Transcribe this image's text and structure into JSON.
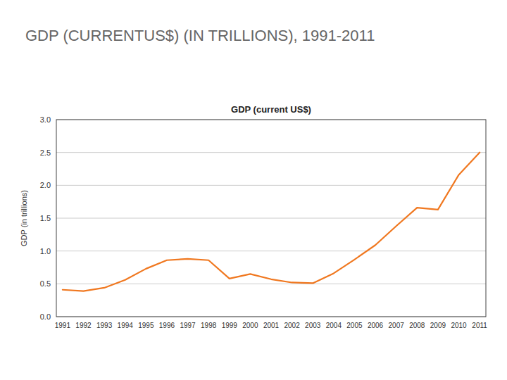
{
  "chart_data": {
    "type": "line",
    "title": "GDP (CURRENTUS$) (IN TRILLIONS), 1991-2011",
    "subtitle": "GDP (current US$)",
    "y_label": "GDP (in trillions)",
    "x": [
      1991,
      1992,
      1993,
      1994,
      1995,
      1996,
      1997,
      1998,
      1999,
      2000,
      2001,
      2002,
      2003,
      2004,
      2005,
      2006,
      2007,
      2008,
      2009,
      2010,
      2011
    ],
    "values": [
      0.41,
      0.39,
      0.44,
      0.56,
      0.73,
      0.86,
      0.88,
      0.86,
      0.58,
      0.65,
      0.57,
      0.52,
      0.51,
      0.66,
      0.87,
      1.09,
      1.38,
      1.66,
      1.63,
      2.16,
      2.5
    ],
    "color": "#F07820",
    "xlim": [
      1990.7,
      2011.3
    ],
    "xticks": [
      1991,
      1992,
      1993,
      1994,
      1995,
      1996,
      1997,
      1998,
      1999,
      2000,
      2001,
      2002,
      2003,
      2004,
      2005,
      2006,
      2007,
      2008,
      2009,
      2010,
      2011
    ],
    "ylim": [
      0.0,
      3.0
    ],
    "yticks": [
      {
        "value": 0.0,
        "label": "0.0"
      },
      0.5,
      {
        "value": 1.0,
        "label": "1.0"
      },
      1.5,
      {
        "value": 2.0,
        "label": "2.0"
      },
      2.5,
      {
        "value": 3.0,
        "label": "3.0"
      }
    ],
    "grid": true
  }
}
